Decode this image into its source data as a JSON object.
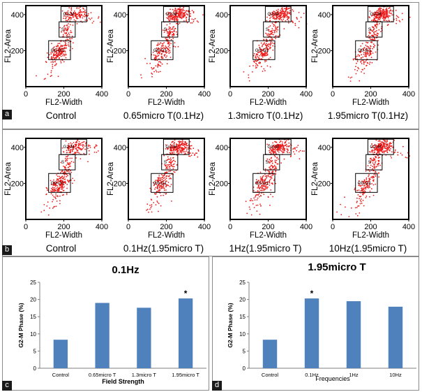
{
  "figure": {
    "panels": [
      "a",
      "b",
      "c",
      "d"
    ]
  },
  "chart_data": [
    {
      "type": "scatter",
      "panel": "a",
      "xlabel": "FL2-Width",
      "ylabel": "FL2-Area",
      "xlim": [
        0,
        400
      ],
      "ylim": [
        0,
        450
      ],
      "xticks": [
        "0",
        "200",
        "400"
      ],
      "yticks": [
        "200",
        "400"
      ],
      "gates": [
        "G2-M",
        "S",
        "G0-G1"
      ],
      "conditions": [
        "Control",
        "0.65micro T(0.1Hz)",
        "1.3micro T(0.1Hz)",
        "1.95micro T(0.1Hz)"
      ]
    },
    {
      "type": "scatter",
      "panel": "b",
      "xlabel": "FL2-Width",
      "ylabel": "FL2-Area",
      "xlim": [
        0,
        400
      ],
      "ylim": [
        0,
        450
      ],
      "xticks": [
        "0",
        "200",
        "400"
      ],
      "yticks": [
        "200",
        "400"
      ],
      "gates": [
        "G2-M",
        "S",
        "G0-G1"
      ],
      "conditions": [
        "Control",
        "0.1Hz(1.95micro T)",
        "1Hz(1.95micro T)",
        "10Hz(1.95micro T)"
      ]
    },
    {
      "type": "bar",
      "panel": "c",
      "title": "0.1Hz",
      "xlabel": "Field Strength",
      "ylabel": "G2-M Phase (%)",
      "categories": [
        "Control",
        "0.65micro T",
        "1.3micro T",
        "1.95micro T"
      ],
      "values": [
        8.3,
        19.0,
        17.6,
        20.3
      ],
      "ylim": [
        0,
        25
      ],
      "yticks": [
        "0",
        "5",
        "10",
        "15",
        "20",
        "25"
      ],
      "significance": [
        "",
        "",
        "",
        "*"
      ],
      "color": "#4f81bd"
    },
    {
      "type": "bar",
      "panel": "d",
      "title": "1.95micro T",
      "xlabel": "Frequencies",
      "ylabel": "G2-M Phase (%)",
      "categories": [
        "Control",
        "0.1Hz",
        "1Hz",
        "10Hz"
      ],
      "values": [
        8.3,
        20.3,
        19.5,
        17.9
      ],
      "ylim": [
        0,
        25
      ],
      "yticks": [
        "0",
        "5",
        "10",
        "15",
        "20",
        "25"
      ],
      "significance": [
        "",
        "*",
        "",
        ""
      ],
      "color": "#4f81bd"
    }
  ]
}
